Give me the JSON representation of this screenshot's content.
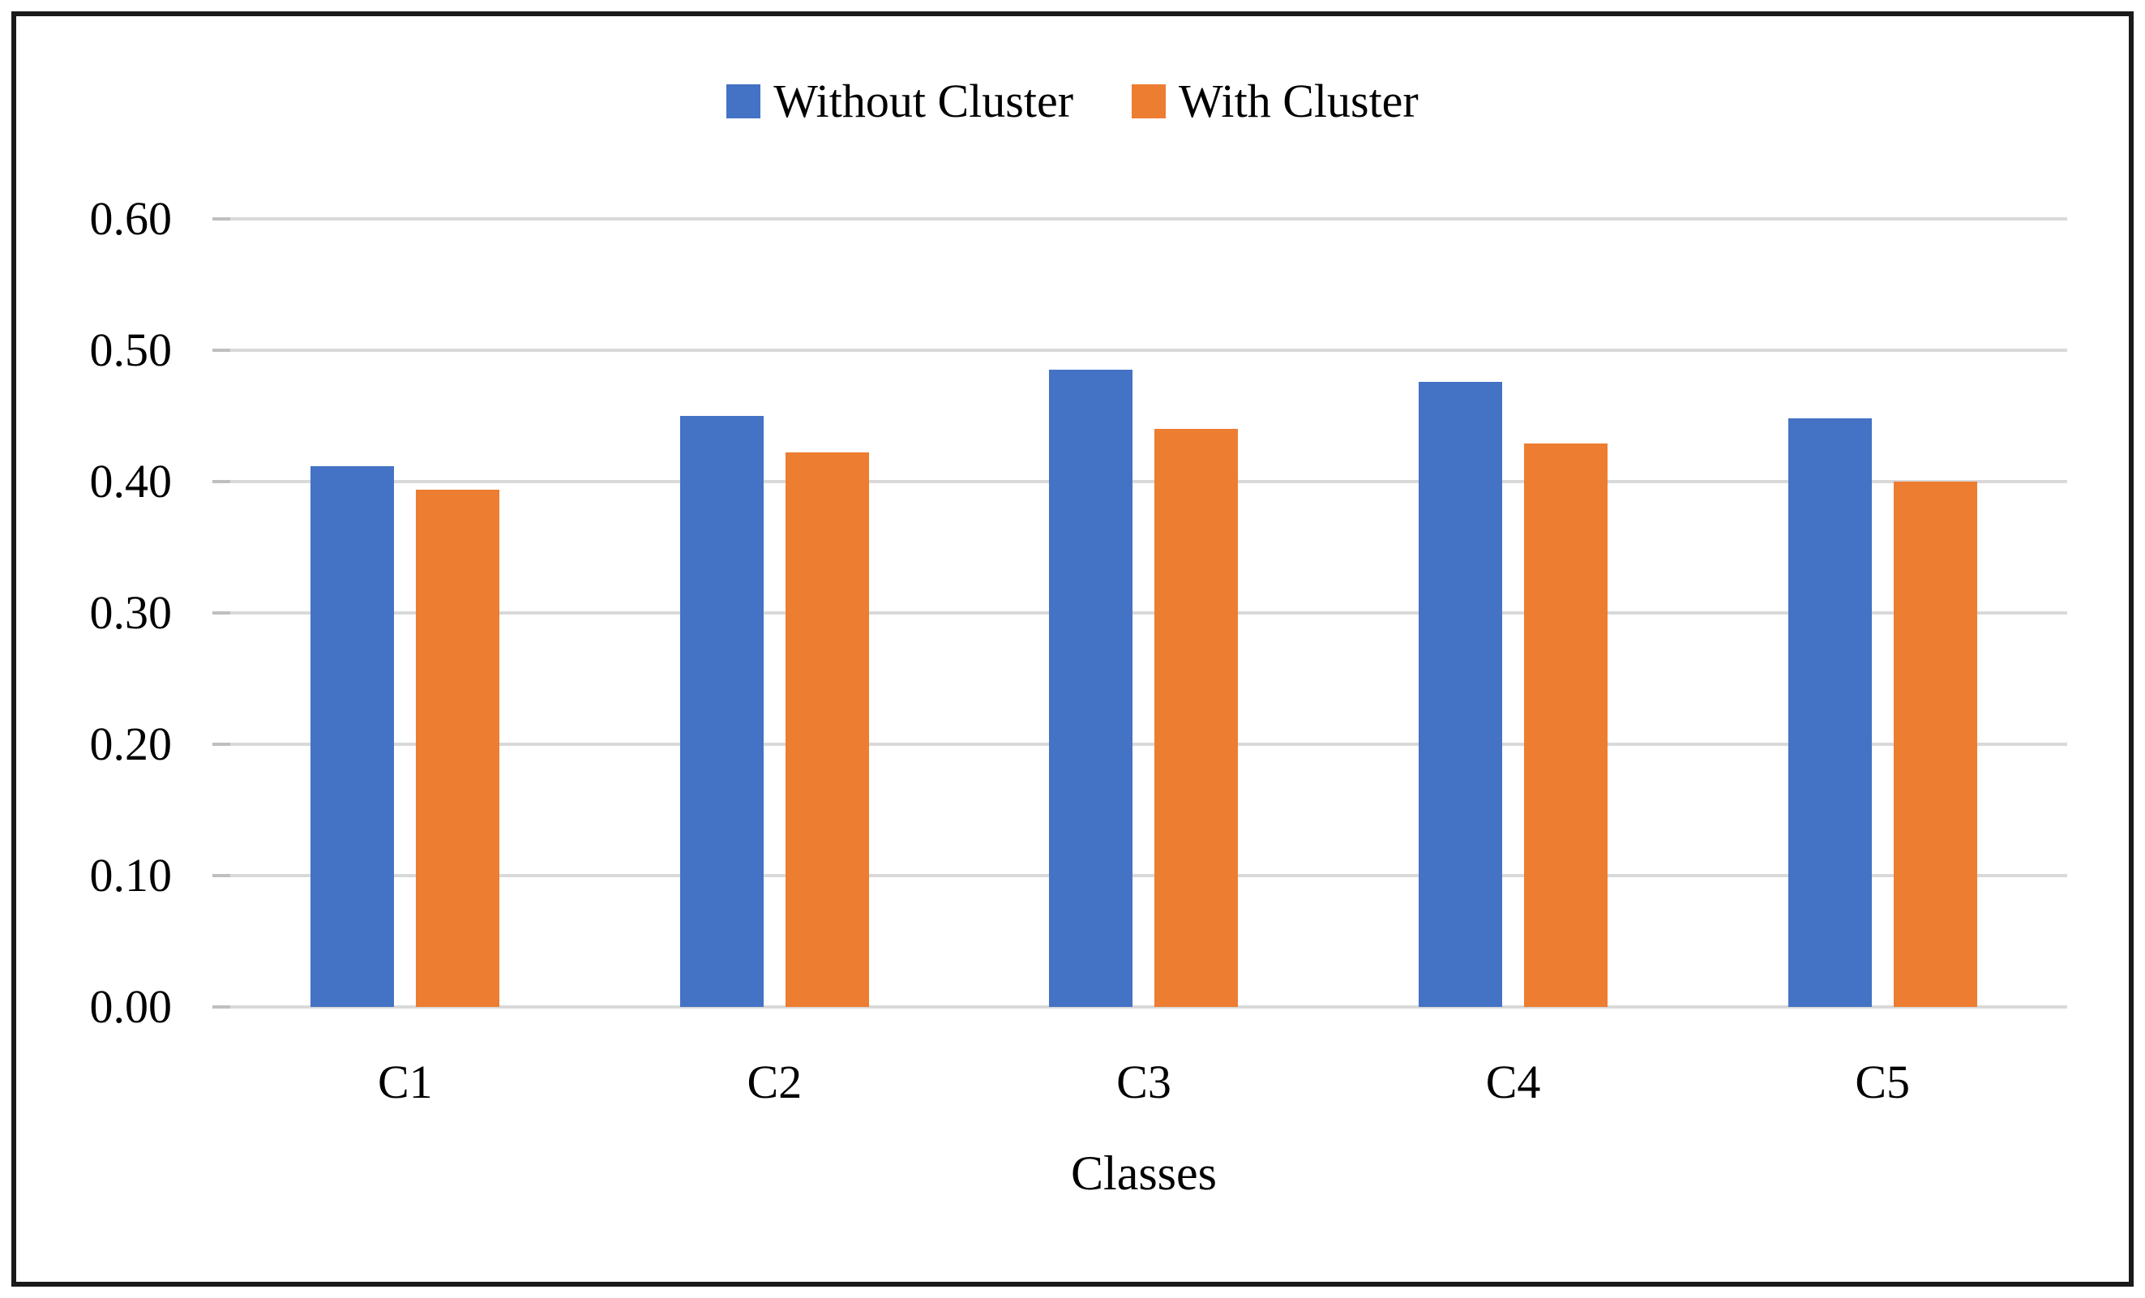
{
  "figure": {
    "background": "#ffffff",
    "border_color": "#1a1a1a"
  },
  "chart_data": {
    "type": "bar",
    "title": "",
    "xlabel": "Classes",
    "ylabel": "",
    "categories": [
      "C1",
      "C2",
      "C3",
      "C4",
      "C5"
    ],
    "series": [
      {
        "name": "Without Cluster",
        "color": "#4472C4",
        "values": [
          0.412,
          0.45,
          0.485,
          0.476,
          0.448
        ]
      },
      {
        "name": "With Cluster",
        "color": "#ED7D31",
        "values": [
          0.394,
          0.422,
          0.44,
          0.429,
          0.4
        ]
      }
    ],
    "ylim": [
      0,
      0.6
    ],
    "yticks": [
      0,
      0.1,
      0.2,
      0.3,
      0.4,
      0.5,
      0.6
    ],
    "ytick_labels": [
      "0.00",
      "0.10",
      "0.20",
      "0.30",
      "0.40",
      "0.50",
      "0.60"
    ],
    "grid": "horizontal",
    "gridline_color": "#D9D9D9",
    "tick_color": "#BFBFBF",
    "legend_position": "top"
  }
}
